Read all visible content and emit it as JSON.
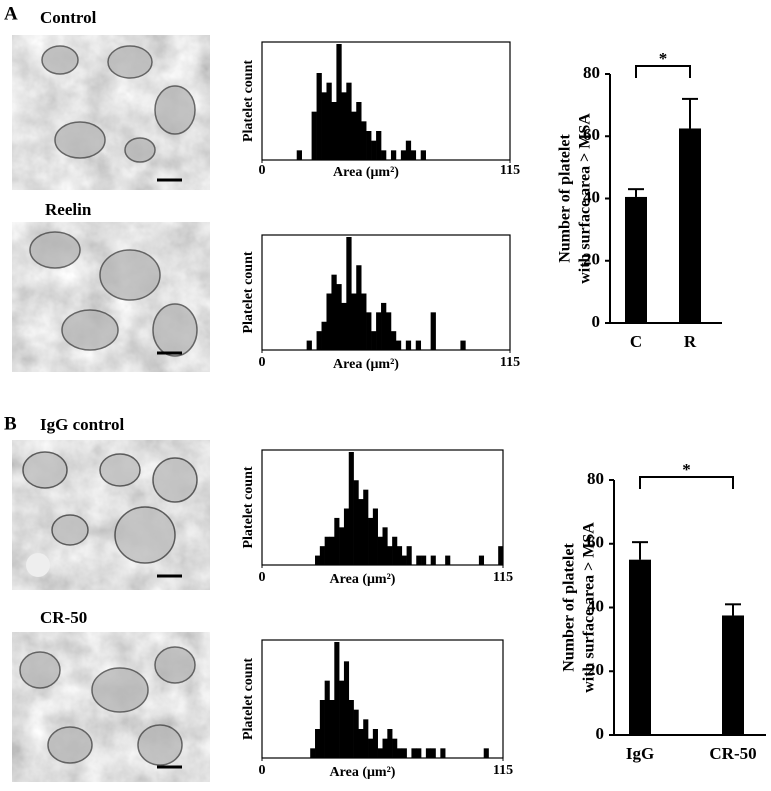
{
  "panel_labels": [
    "A",
    "B"
  ],
  "image_labels": [
    "Control",
    "Reelin",
    "IgG control",
    "CR-50"
  ],
  "chart_data": [
    {
      "type": "histogram",
      "ylabel": "Platelet count",
      "xlabel": "Area (μm²)",
      "xlim": [
        0,
        115
      ],
      "xticks": [
        0,
        115
      ],
      "ylim": [
        0,
        12
      ],
      "color": "#000000",
      "bins": [
        0,
        2.3,
        4.6,
        6.9,
        9.2,
        11.5,
        13.8,
        16.1,
        18.4,
        20.7,
        23,
        25.3,
        27.6,
        29.9,
        32.2,
        34.5,
        36.8,
        39.1,
        41.4,
        43.7,
        46,
        48.3,
        50.6,
        52.9,
        55.2,
        57.5,
        59.8,
        62.1,
        64.4,
        66.7,
        69,
        71.3,
        73.6,
        75.9,
        78.2,
        80.5,
        82.8,
        85.1,
        87.4,
        89.7,
        92,
        94.3,
        96.6,
        98.9,
        101.2,
        103.5,
        105.8,
        108.1,
        110.4,
        112.7,
        115
      ],
      "counts": [
        0,
        0,
        0,
        0,
        0,
        0,
        0,
        1,
        0,
        0,
        5,
        9,
        7,
        8,
        6,
        12,
        7,
        8,
        5,
        6,
        4,
        3,
        2,
        3,
        1,
        0,
        1,
        0,
        1,
        2,
        1,
        0,
        1,
        0,
        0,
        0,
        0,
        0,
        0,
        0,
        0,
        0,
        0,
        0,
        0,
        0,
        0,
        0,
        0,
        0
      ]
    },
    {
      "type": "histogram",
      "ylabel": "Platelet count",
      "xlabel": "Area (μm²)",
      "xlim": [
        0,
        115
      ],
      "xticks": [
        0,
        115
      ],
      "ylim": [
        0,
        12
      ],
      "color": "#000000",
      "bins": [
        0,
        2.3,
        4.6,
        6.9,
        9.2,
        11.5,
        13.8,
        16.1,
        18.4,
        20.7,
        23,
        25.3,
        27.6,
        29.9,
        32.2,
        34.5,
        36.8,
        39.1,
        41.4,
        43.7,
        46,
        48.3,
        50.6,
        52.9,
        55.2,
        57.5,
        59.8,
        62.1,
        64.4,
        66.7,
        69,
        71.3,
        73.6,
        75.9,
        78.2,
        80.5,
        82.8,
        85.1,
        87.4,
        89.7,
        92,
        94.3,
        96.6,
        98.9,
        101.2,
        103.5,
        105.8,
        108.1,
        110.4,
        112.7,
        115
      ],
      "counts": [
        0,
        0,
        0,
        0,
        0,
        0,
        0,
        0,
        0,
        1,
        0,
        2,
        3,
        6,
        8,
        7,
        5,
        12,
        6,
        9,
        6,
        4,
        2,
        4,
        5,
        4,
        2,
        1,
        0,
        1,
        0,
        1,
        0,
        0,
        4,
        0,
        0,
        0,
        0,
        0,
        1,
        0,
        0,
        0,
        0,
        0,
        0,
        0,
        0,
        0
      ]
    },
    {
      "type": "histogram",
      "ylabel": "Platelet count",
      "xlabel": "Area (μm²)",
      "xlim": [
        0,
        115
      ],
      "xticks": [
        0,
        115
      ],
      "ylim": [
        0,
        12
      ],
      "color": "#000000",
      "bins": [
        0,
        2.3,
        4.6,
        6.9,
        9.2,
        11.5,
        13.8,
        16.1,
        18.4,
        20.7,
        23,
        25.3,
        27.6,
        29.9,
        32.2,
        34.5,
        36.8,
        39.1,
        41.4,
        43.7,
        46,
        48.3,
        50.6,
        52.9,
        55.2,
        57.5,
        59.8,
        62.1,
        64.4,
        66.7,
        69,
        71.3,
        73.6,
        75.9,
        78.2,
        80.5,
        82.8,
        85.1,
        87.4,
        89.7,
        92,
        94.3,
        96.6,
        98.9,
        101.2,
        103.5,
        105.8,
        108.1,
        110.4,
        112.7,
        115
      ],
      "counts": [
        0,
        0,
        0,
        0,
        0,
        0,
        0,
        0,
        0,
        0,
        0,
        1,
        2,
        3,
        3,
        5,
        4,
        6,
        12,
        9,
        7,
        8,
        5,
        6,
        3,
        4,
        2,
        3,
        2,
        1,
        2,
        0,
        1,
        1,
        0,
        1,
        0,
        0,
        1,
        0,
        0,
        0,
        0,
        0,
        0,
        1,
        0,
        0,
        0,
        2
      ]
    },
    {
      "type": "histogram",
      "ylabel": "Platelet count",
      "xlabel": "Area (μm²)",
      "xlim": [
        0,
        115
      ],
      "xticks": [
        0,
        115
      ],
      "ylim": [
        0,
        12
      ],
      "color": "#000000",
      "bins": [
        0,
        2.3,
        4.6,
        6.9,
        9.2,
        11.5,
        13.8,
        16.1,
        18.4,
        20.7,
        23,
        25.3,
        27.6,
        29.9,
        32.2,
        34.5,
        36.8,
        39.1,
        41.4,
        43.7,
        46,
        48.3,
        50.6,
        52.9,
        55.2,
        57.5,
        59.8,
        62.1,
        64.4,
        66.7,
        69,
        71.3,
        73.6,
        75.9,
        78.2,
        80.5,
        82.8,
        85.1,
        87.4,
        89.7,
        92,
        94.3,
        96.6,
        98.9,
        101.2,
        103.5,
        105.8,
        108.1,
        110.4,
        112.7,
        115
      ],
      "counts": [
        0,
        0,
        0,
        0,
        0,
        0,
        0,
        0,
        0,
        0,
        1,
        3,
        6,
        8,
        6,
        12,
        8,
        10,
        6,
        5,
        3,
        4,
        2,
        3,
        1,
        2,
        3,
        2,
        1,
        1,
        0,
        1,
        1,
        0,
        1,
        1,
        0,
        1,
        0,
        0,
        0,
        0,
        0,
        0,
        0,
        0,
        1,
        0,
        0,
        0
      ]
    },
    {
      "type": "bar",
      "ylabel": [
        "Number of platelet",
        "with surface area > MSA"
      ],
      "categories": [
        "C",
        "R"
      ],
      "values": [
        40.5,
        62.5
      ],
      "errors": [
        2.5,
        9.5
      ],
      "color": "#000000",
      "ylim": [
        0,
        80
      ],
      "yticks": [
        0,
        20,
        40,
        60,
        80
      ],
      "annotation": "*"
    },
    {
      "type": "bar",
      "ylabel": [
        "Number of platelet",
        "with surface area > MSA"
      ],
      "categories": [
        "IgG",
        "CR-50"
      ],
      "values": [
        55,
        37.5
      ],
      "errors": [
        5.5,
        3.5
      ],
      "color": "#000000",
      "ylim": [
        0,
        80
      ],
      "yticks": [
        0,
        20,
        40,
        60,
        80
      ],
      "annotation": "*"
    }
  ]
}
